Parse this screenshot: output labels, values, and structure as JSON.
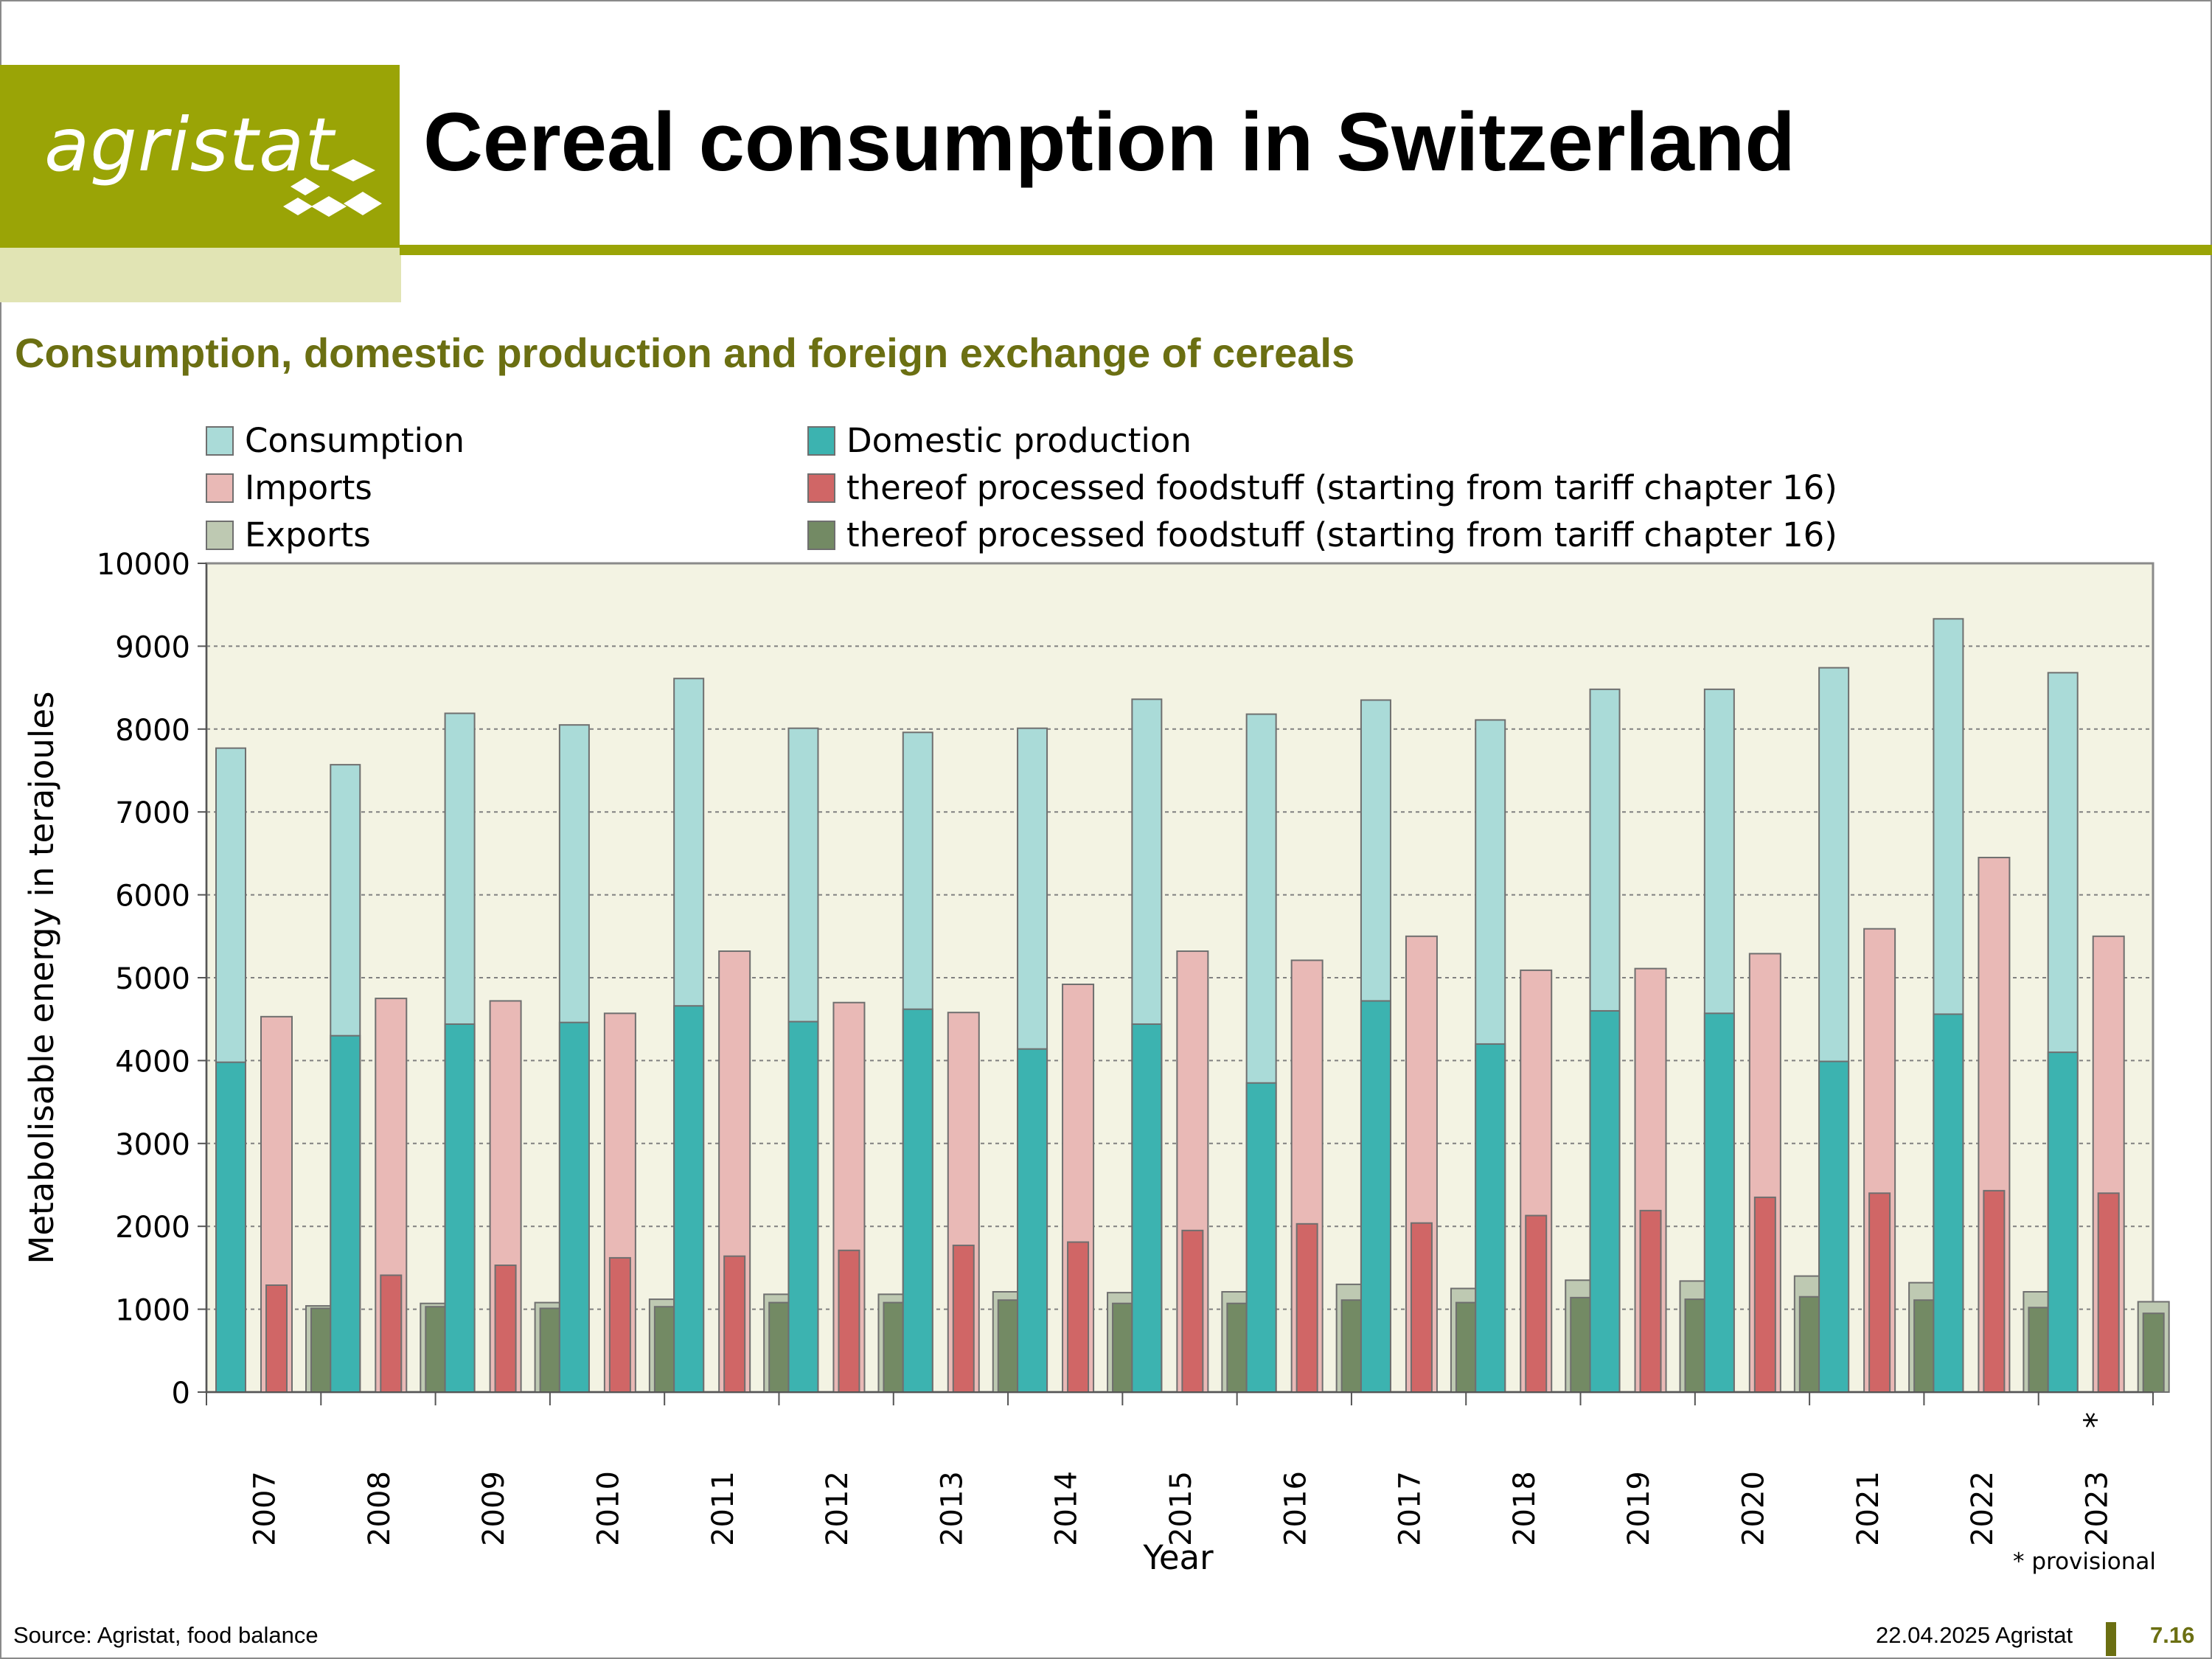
{
  "logo": {
    "text": "agristat"
  },
  "title": "Cereal consumption in Switzerland",
  "footer": {
    "source": "Source: Agristat, food balance",
    "date": "22.04.2025 Agristat",
    "page": "7.16"
  },
  "colors": {
    "brand": "#9aa406",
    "consumption": "#aadbd8",
    "domestic": "#3cb3b0",
    "imports": "#e9b9b6",
    "imports_processed": "#d06666",
    "exports": "#bec9b2",
    "exports_processed": "#738a64",
    "plot_bg": "#f3f3e3"
  },
  "chart_data": {
    "type": "bar",
    "title": "Consumption, domestic production and foreign exchange of cereals",
    "xlabel": "Year",
    "ylabel": "Metabolisable energy in terajoules",
    "ylim": [
      0,
      10000
    ],
    "yticks": [
      "0",
      "1000",
      "2000",
      "3000",
      "4000",
      "5000",
      "6000",
      "7000",
      "8000",
      "9000",
      "10000"
    ],
    "grid": true,
    "legend_position": "top",
    "categories": [
      "2007",
      "2008",
      "2009",
      "2010",
      "2011",
      "2012",
      "2013",
      "2014",
      "2015",
      "2016",
      "2017",
      "2018",
      "2019",
      "2020",
      "2021",
      "2022",
      "2023"
    ],
    "category_marks": [
      "",
      "",
      "",
      "",
      "",
      "",
      "",
      "",
      "",
      "",
      "",
      "",
      "",
      "",
      "",
      "",
      "*"
    ],
    "note": "* provisional",
    "series": [
      {
        "name": "Consumption",
        "values": [
          7770,
          7570,
          8190,
          8050,
          8610,
          8010,
          7960,
          8010,
          8360,
          8180,
          8350,
          8110,
          8480,
          8480,
          8740,
          9330,
          8680
        ]
      },
      {
        "name": "Domestic production",
        "values": [
          3980,
          4300,
          4440,
          4460,
          4660,
          4470,
          4620,
          4140,
          4440,
          3730,
          4720,
          4200,
          4600,
          4570,
          3990,
          4560,
          4100
        ]
      },
      {
        "name": "Imports",
        "values": [
          4530,
          4750,
          4720,
          4570,
          5320,
          4700,
          4580,
          4920,
          5320,
          5210,
          5500,
          5090,
          5110,
          5290,
          5590,
          6450,
          5500
        ]
      },
      {
        "name": "thereof processed foodstuff (starting from tariff chapter 16)",
        "values": [
          1290,
          1410,
          1530,
          1620,
          1640,
          1710,
          1770,
          1810,
          1950,
          2030,
          2040,
          2130,
          2190,
          2350,
          2400,
          2430,
          2400
        ]
      },
      {
        "name": "Exports",
        "values": [
          1040,
          1070,
          1080,
          1120,
          1180,
          1180,
          1210,
          1200,
          1210,
          1300,
          1250,
          1350,
          1340,
          1400,
          1320,
          1210,
          1090
        ]
      },
      {
        "name": "thereof processed foodstuff (starting from tariff chapter 16)",
        "values": [
          1010,
          1030,
          1010,
          1030,
          1080,
          1080,
          1110,
          1070,
          1070,
          1110,
          1080,
          1140,
          1120,
          1150,
          1110,
          1020,
          950
        ]
      }
    ]
  }
}
